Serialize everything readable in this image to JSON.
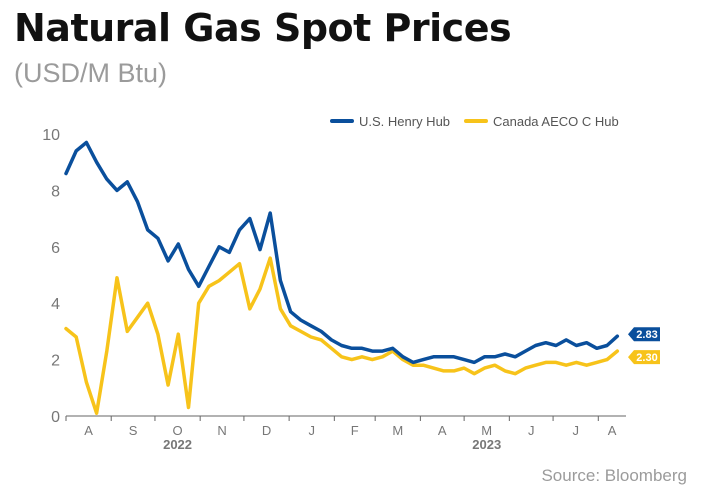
{
  "header": {
    "title": "Natural Gas Spot Prices",
    "subtitle": "(USD/M Btu)"
  },
  "footer": {
    "source": "Source: Bloomberg"
  },
  "colors": {
    "henry": "#0a4f9c",
    "aeco": "#f7c31a",
    "axis": "#666666",
    "grid": "#d9d9d9",
    "text": "#777777"
  },
  "chart_data": {
    "type": "line",
    "title": "Natural Gas Spot Prices",
    "subtitle": "(USD/M Btu)",
    "xlabel": "",
    "ylabel": "",
    "ylim": [
      0,
      10
    ],
    "yticks": [
      "0",
      "2",
      "4",
      "6",
      "8",
      "10"
    ],
    "x_months": [
      "A",
      "S",
      "O",
      "N",
      "D",
      "J",
      "F",
      "M",
      "A",
      "M",
      "J",
      "J",
      "A"
    ],
    "years": [
      {
        "label": "2022",
        "month_index": 2
      },
      {
        "label": "2023",
        "month_index": 9
      }
    ],
    "grid": false,
    "legend": "top-right",
    "series": [
      {
        "name": "U.S. Henry Hub",
        "end_label": "2.83",
        "x": [
          "2022-08-01",
          "2022-08-08",
          "2022-08-15",
          "2022-08-22",
          "2022-08-29",
          "2022-09-05",
          "2022-09-12",
          "2022-09-19",
          "2022-09-26",
          "2022-10-03",
          "2022-10-10",
          "2022-10-17",
          "2022-10-24",
          "2022-10-31",
          "2022-11-07",
          "2022-11-14",
          "2022-11-21",
          "2022-11-28",
          "2022-12-05",
          "2022-12-12",
          "2022-12-19",
          "2022-12-26",
          "2023-01-02",
          "2023-01-09",
          "2023-01-16",
          "2023-01-23",
          "2023-01-30",
          "2023-02-06",
          "2023-02-13",
          "2023-02-20",
          "2023-02-27",
          "2023-03-06",
          "2023-03-13",
          "2023-03-20",
          "2023-03-27",
          "2023-04-03",
          "2023-04-10",
          "2023-04-17",
          "2023-04-24",
          "2023-05-01",
          "2023-05-08",
          "2023-05-15",
          "2023-05-22",
          "2023-05-29",
          "2023-06-05",
          "2023-06-12",
          "2023-06-19",
          "2023-06-26",
          "2023-07-03",
          "2023-07-10",
          "2023-07-17",
          "2023-07-24",
          "2023-07-31",
          "2023-08-07",
          "2023-08-14"
        ],
        "values": [
          8.6,
          9.4,
          9.7,
          9.0,
          8.4,
          8.0,
          8.3,
          7.6,
          6.6,
          6.3,
          5.5,
          6.1,
          5.2,
          4.6,
          5.3,
          6.0,
          5.8,
          6.6,
          7.0,
          5.9,
          7.2,
          4.8,
          3.7,
          3.4,
          3.2,
          3.0,
          2.7,
          2.5,
          2.4,
          2.4,
          2.3,
          2.3,
          2.4,
          2.1,
          1.9,
          2.0,
          2.1,
          2.1,
          2.1,
          2.0,
          1.9,
          2.1,
          2.1,
          2.2,
          2.1,
          2.3,
          2.5,
          2.6,
          2.5,
          2.7,
          2.5,
          2.6,
          2.4,
          2.5,
          2.83
        ]
      },
      {
        "name": "Canada AECO C Hub",
        "end_label": "2.30",
        "x": [
          "2022-08-01",
          "2022-08-08",
          "2022-08-15",
          "2022-08-22",
          "2022-08-29",
          "2022-09-05",
          "2022-09-12",
          "2022-09-19",
          "2022-09-26",
          "2022-10-03",
          "2022-10-10",
          "2022-10-17",
          "2022-10-24",
          "2022-10-31",
          "2022-11-07",
          "2022-11-14",
          "2022-11-21",
          "2022-11-28",
          "2022-12-05",
          "2022-12-12",
          "2022-12-19",
          "2022-12-26",
          "2023-01-02",
          "2023-01-09",
          "2023-01-16",
          "2023-01-23",
          "2023-01-30",
          "2023-02-06",
          "2023-02-13",
          "2023-02-20",
          "2023-02-27",
          "2023-03-06",
          "2023-03-13",
          "2023-03-20",
          "2023-03-27",
          "2023-04-03",
          "2023-04-10",
          "2023-04-17",
          "2023-04-24",
          "2023-05-01",
          "2023-05-08",
          "2023-05-15",
          "2023-05-22",
          "2023-05-29",
          "2023-06-05",
          "2023-06-12",
          "2023-06-19",
          "2023-06-26",
          "2023-07-03",
          "2023-07-10",
          "2023-07-17",
          "2023-07-24",
          "2023-07-31",
          "2023-08-07",
          "2023-08-14"
        ],
        "values": [
          3.1,
          2.8,
          1.2,
          0.1,
          2.3,
          4.9,
          3.0,
          3.5,
          4.0,
          2.9,
          1.1,
          2.9,
          0.3,
          4.0,
          4.6,
          4.8,
          5.1,
          5.4,
          3.8,
          4.5,
          5.6,
          3.8,
          3.2,
          3.0,
          2.8,
          2.7,
          2.4,
          2.1,
          2.0,
          2.1,
          2.0,
          2.1,
          2.3,
          2.0,
          1.8,
          1.8,
          1.7,
          1.6,
          1.6,
          1.7,
          1.5,
          1.7,
          1.8,
          1.6,
          1.5,
          1.7,
          1.8,
          1.9,
          1.9,
          1.8,
          1.9,
          1.8,
          1.9,
          2.0,
          2.3
        ]
      }
    ]
  }
}
